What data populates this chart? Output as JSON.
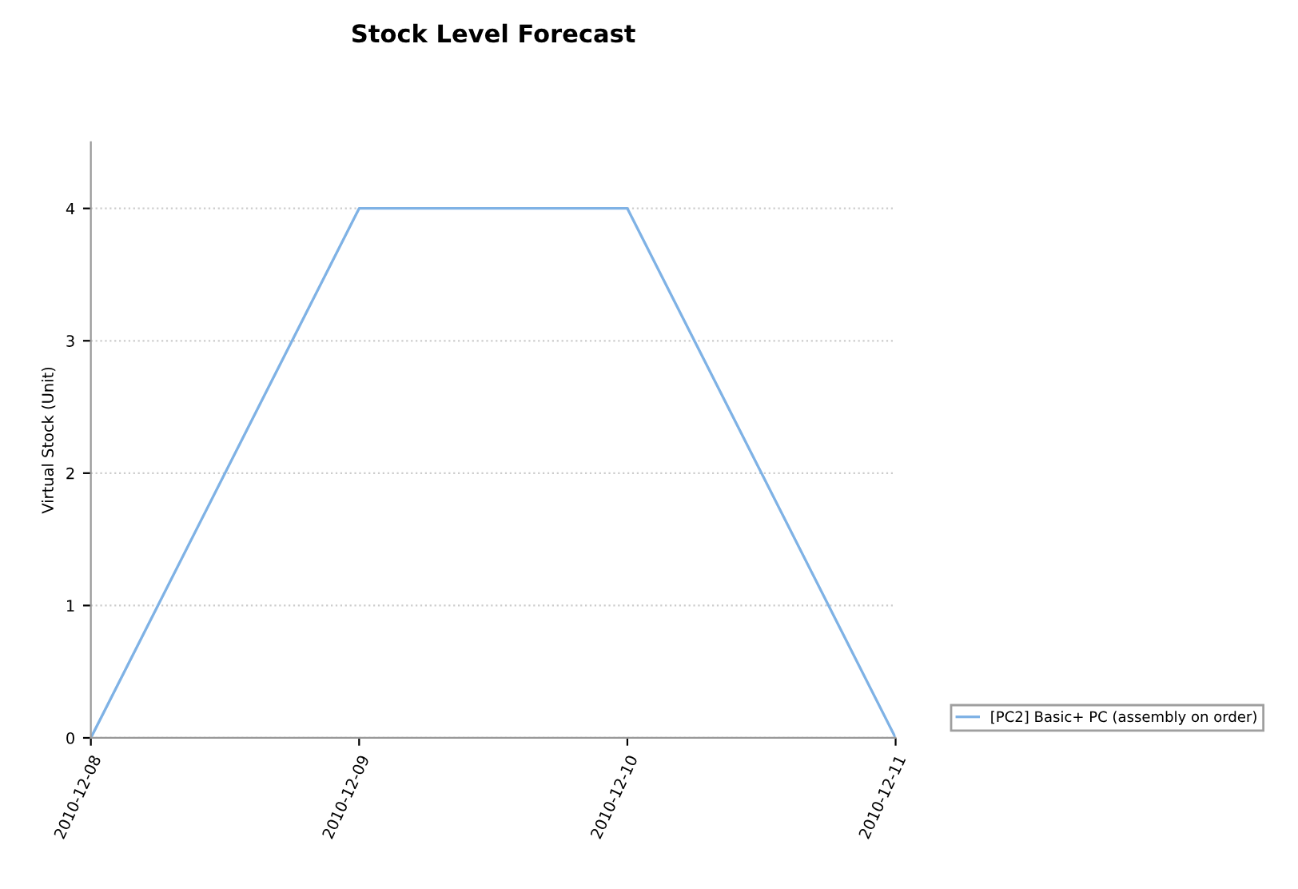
{
  "chart_data": {
    "type": "line",
    "title": "Stock Level Forecast",
    "ylabel": "Virtual Stock (Unit)",
    "categories": [
      "2010-12-08",
      "2010-12-09",
      "2010-12-10",
      "2010-12-11"
    ],
    "series": [
      {
        "name": "[PC2] Basic+ PC (assembly on order)",
        "color": "#7fb2e5",
        "values": [
          0,
          4,
          4,
          0
        ]
      }
    ],
    "ylim": [
      0,
      4.5
    ],
    "yticks": [
      0,
      1,
      2,
      3,
      4
    ],
    "grid": "y",
    "legend": "bottom right",
    "marker": "none",
    "line_style": "solid"
  }
}
